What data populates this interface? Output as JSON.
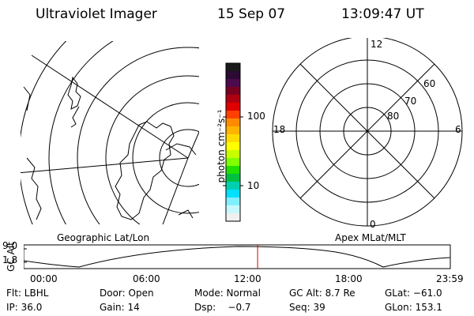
{
  "header": {
    "title": "Ultraviolet Imager",
    "date": "15 Sep 07",
    "time": "13:09:47 UT"
  },
  "colorbar": {
    "unit_label": "photon cm⁻²s⁻¹",
    "tick_100": "100",
    "tick_10": "10",
    "colors": [
      "#1a1a1a",
      "#2b0a33",
      "#4d0a4d",
      "#7a0020",
      "#b00010",
      "#e00000",
      "#ff4000",
      "#ff8c00",
      "#ffb400",
      "#ffdc00",
      "#ffff00",
      "#c8ff00",
      "#80ff00",
      "#20e000",
      "#00c040",
      "#00d0b0",
      "#00e0ff",
      "#80f0ff",
      "#c8f8ff",
      "#f0f0f0"
    ]
  },
  "panels": {
    "left_label": "Geographic Lat/Lon",
    "right_label": "Apex MLat/MLT"
  },
  "polar": {
    "mlt_12": "12",
    "mlt_18": "18",
    "mlt_6": "6",
    "mlt_0": "0",
    "lat_60": "60",
    "lat_70": "70",
    "lat_80": "80"
  },
  "altitude_plot": {
    "axis_label": "GC Alt",
    "y_top": "9.0",
    "y_bottom": "1.8",
    "x_ticks": [
      "00:00",
      "06:00",
      "12:00",
      "18:00",
      "23:59"
    ],
    "current_time_hours": 13.16
  },
  "info": {
    "filter": "Flt: LBHL",
    "door": "Door: Open",
    "mode": "Mode: Normal",
    "gc_alt": "GC Alt: 8.7 Re",
    "glat": "GLat: −61.0",
    "ip": "IP: 36.0",
    "gain": "Gain: 14",
    "dsp": "Dsp:    −0.7",
    "seq": "Seq: 39",
    "glon": "GLon: 153.1"
  }
}
